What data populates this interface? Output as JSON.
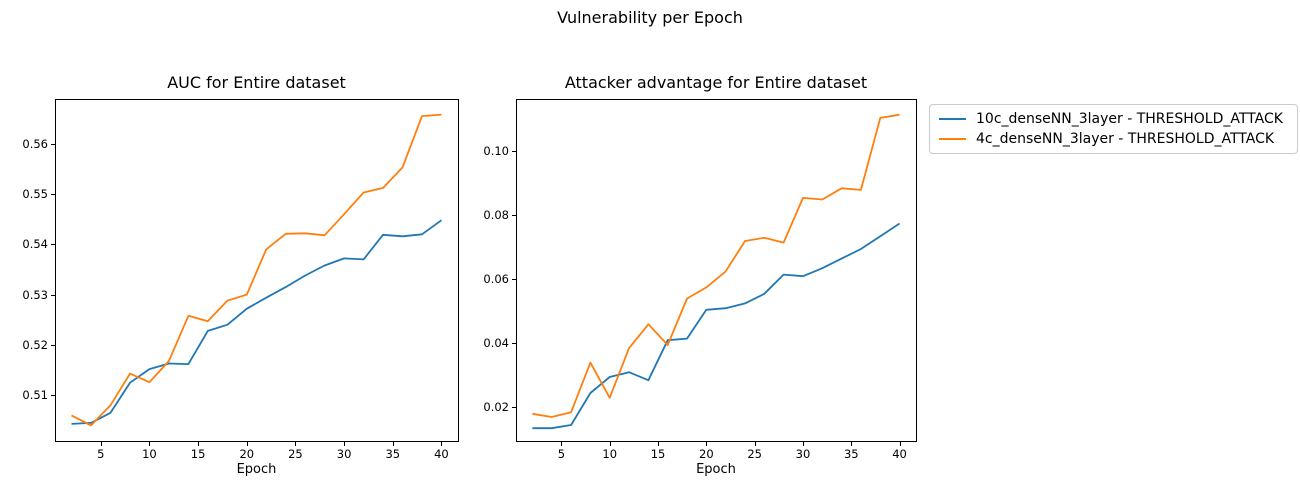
{
  "figure": {
    "suptitle": "Vulnerability per Epoch",
    "background_color": "#ffffff",
    "text_color": "#000000"
  },
  "legend": {
    "position": "upper right, outside axes",
    "entries": [
      {
        "label": "10c_denseNN_3layer - THRESHOLD_ATTACK",
        "color": "#1f77b4"
      },
      {
        "label": "4c_denseNN_3layer - THRESHOLD_ATTACK",
        "color": "#ff7f0e"
      }
    ]
  },
  "chart_data": [
    {
      "type": "line",
      "title": "AUC for Entire dataset",
      "xlabel": "Epoch",
      "ylabel": "",
      "grid": false,
      "xlim": [
        0.3,
        41.7
      ],
      "ylim": [
        0.5009,
        0.5689
      ],
      "xticks": [
        5,
        10,
        15,
        20,
        25,
        30,
        35,
        40
      ],
      "xtick_labels": [
        "5",
        "10",
        "15",
        "20",
        "25",
        "30",
        "35",
        "40"
      ],
      "yticks": [
        0.51,
        0.52,
        0.53,
        0.54,
        0.55,
        0.56
      ],
      "ytick_labels": [
        "0.51",
        "0.52",
        "0.53",
        "0.54",
        "0.55",
        "0.56"
      ],
      "x": [
        2,
        4,
        6,
        8,
        10,
        12,
        14,
        16,
        18,
        20,
        22,
        24,
        26,
        28,
        30,
        32,
        34,
        36,
        38,
        40
      ],
      "series": [
        {
          "name": "10c_denseNN_3layer - THRESHOLD_ATTACK",
          "color": "#1f77b4",
          "values": [
            0.5043,
            0.5045,
            0.5065,
            0.5125,
            0.5152,
            0.5163,
            0.5162,
            0.5228,
            0.524,
            0.5272,
            0.5294,
            0.5315,
            0.5338,
            0.5358,
            0.5372,
            0.537,
            0.5419,
            0.5416,
            0.542,
            0.5448
          ]
        },
        {
          "name": "4c_denseNN_3layer - THRESHOLD_ATTACK",
          "color": "#ff7f0e",
          "values": [
            0.506,
            0.504,
            0.508,
            0.5143,
            0.5126,
            0.5168,
            0.5258,
            0.5247,
            0.5288,
            0.53,
            0.539,
            0.5421,
            0.5422,
            0.5418,
            0.546,
            0.5503,
            0.5512,
            0.5553,
            0.5655,
            0.5658
          ]
        }
      ]
    },
    {
      "type": "line",
      "title": "Attacker advantage for Entire dataset",
      "xlabel": "Epoch",
      "ylabel": "",
      "grid": false,
      "xlim": [
        0.3,
        41.7
      ],
      "ylim": [
        0.0095,
        0.1164
      ],
      "xticks": [
        5,
        10,
        15,
        20,
        25,
        30,
        35,
        40
      ],
      "xtick_labels": [
        "5",
        "10",
        "15",
        "20",
        "25",
        "30",
        "35",
        "40"
      ],
      "yticks": [
        0.02,
        0.04,
        0.06,
        0.08,
        0.1
      ],
      "ytick_labels": [
        "0.02",
        "0.04",
        "0.06",
        "0.08",
        "0.10"
      ],
      "x": [
        2,
        4,
        6,
        8,
        10,
        12,
        14,
        16,
        18,
        20,
        22,
        24,
        26,
        28,
        30,
        32,
        34,
        36,
        38,
        40
      ],
      "series": [
        {
          "name": "10c_denseNN_3layer - THRESHOLD_ATTACK",
          "color": "#1f77b4",
          "values": [
            0.0135,
            0.0135,
            0.0145,
            0.0245,
            0.0295,
            0.031,
            0.0285,
            0.041,
            0.0415,
            0.0505,
            0.051,
            0.0525,
            0.0555,
            0.0615,
            0.061,
            0.0635,
            0.0665,
            0.0695,
            0.0735,
            0.0775
          ]
        },
        {
          "name": "4c_denseNN_3layer - THRESHOLD_ATTACK",
          "color": "#ff7f0e",
          "values": [
            0.018,
            0.017,
            0.0185,
            0.034,
            0.023,
            0.0385,
            0.046,
            0.0395,
            0.054,
            0.0575,
            0.0625,
            0.072,
            0.073,
            0.0715,
            0.0855,
            0.085,
            0.0885,
            0.088,
            0.1105,
            0.1115
          ]
        }
      ]
    }
  ]
}
